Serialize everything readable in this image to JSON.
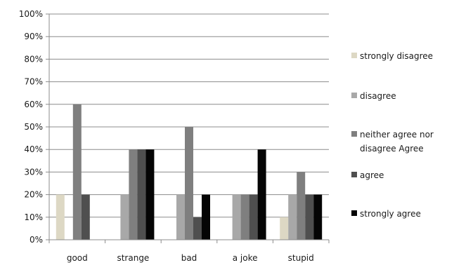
{
  "chart_data": {
    "type": "bar",
    "categories": [
      "good",
      "strange",
      "bad",
      "a joke",
      "stupid"
    ],
    "series": [
      {
        "name": "strongly disagree",
        "color": "#ddd8c4",
        "values": [
          20,
          0,
          0,
          0,
          10
        ]
      },
      {
        "name": "disagree",
        "color": "#a8a8a8",
        "values": [
          0,
          20,
          20,
          20,
          20
        ]
      },
      {
        "name": "neither agree nor disagree Agree",
        "color": "#7f7f7f",
        "values": [
          60,
          40,
          50,
          20,
          30
        ]
      },
      {
        "name": "agree",
        "color": "#4f4f4f",
        "values": [
          20,
          40,
          10,
          20,
          20
        ]
      },
      {
        "name": "strongly agree",
        "color": "#050505",
        "values": [
          0,
          40,
          20,
          40,
          20
        ]
      }
    ],
    "legend_lines": [
      [
        "strongly disagree"
      ],
      [
        "disagree"
      ],
      [
        "neither agree nor",
        "disagree Agree"
      ],
      [
        "agree"
      ],
      [
        "strongly agree"
      ]
    ],
    "ylim": [
      0,
      100
    ],
    "yticks": [
      0,
      10,
      20,
      30,
      40,
      50,
      60,
      70,
      80,
      90,
      100
    ],
    "ytick_labels": [
      "0%",
      "10%",
      "20%",
      "30%",
      "40%",
      "50%",
      "60%",
      "70%",
      "80%",
      "90%",
      "100%"
    ],
    "grid": true,
    "legend_position": "right"
  }
}
